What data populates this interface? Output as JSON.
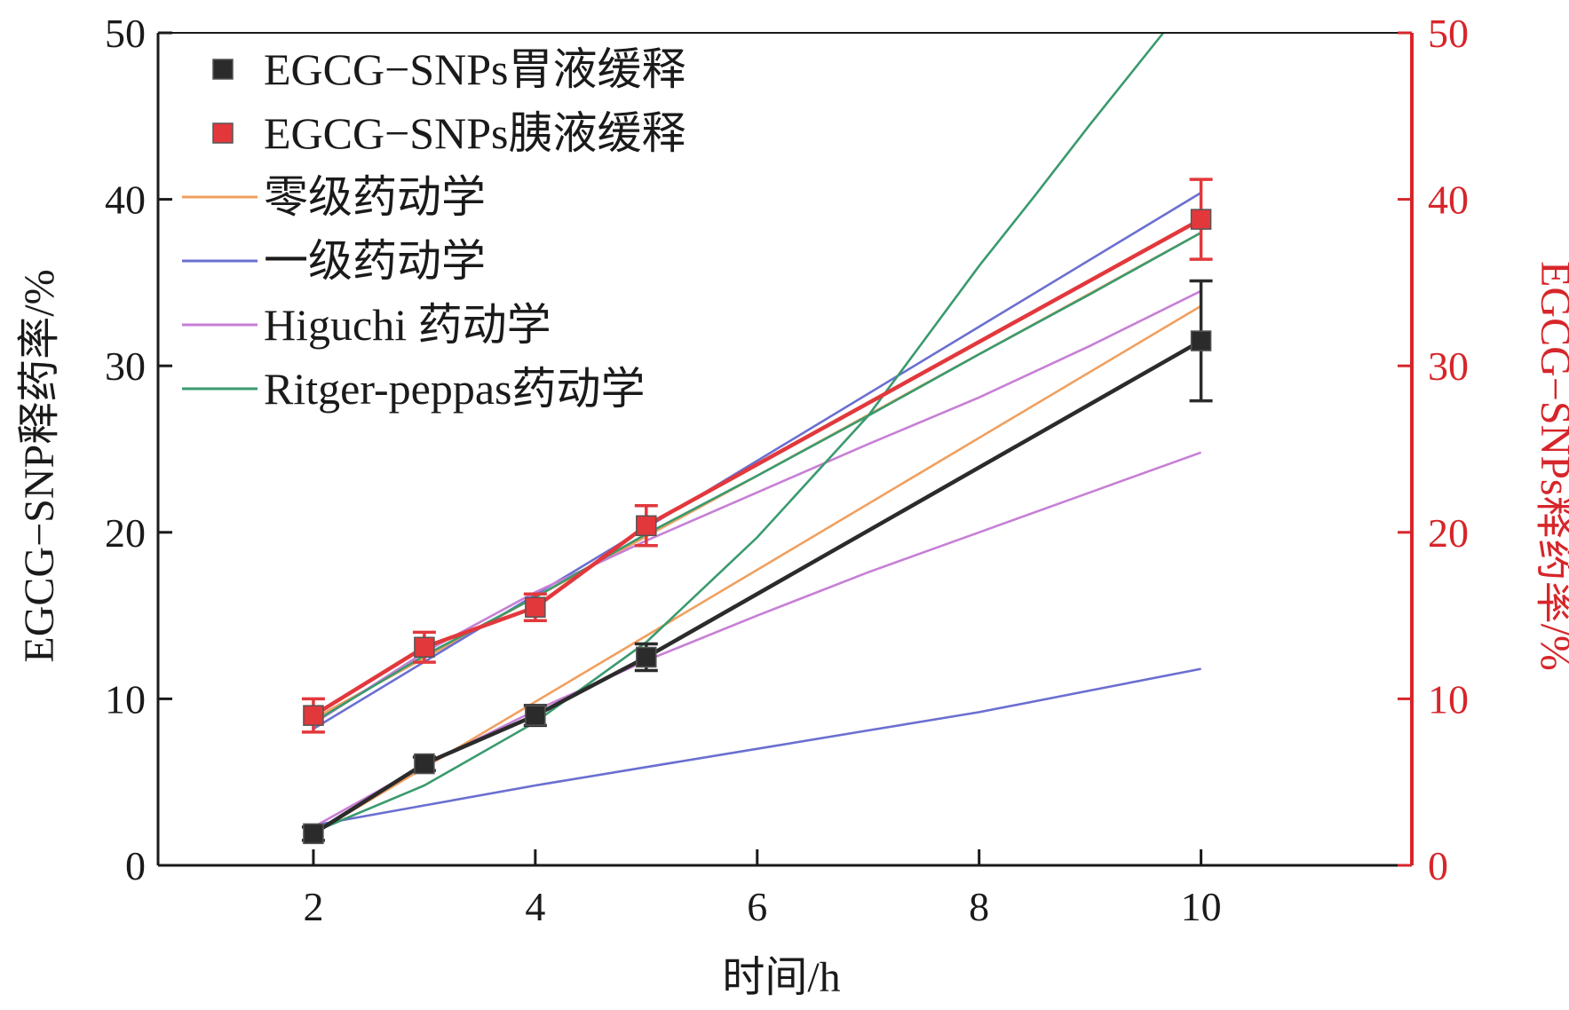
{
  "chart_data": {
    "type": "line",
    "title": "",
    "xlabel": "时间/h",
    "ylabel_left": "EGCG−SNP释药率/%",
    "ylabel_right": "EGCG−SNPs释药率/%",
    "xlim": [
      0.6,
      11.9
    ],
    "ylim": [
      0,
      50
    ],
    "ylim_right": [
      0,
      50
    ],
    "x_ticks": [
      2,
      4,
      6,
      8,
      10
    ],
    "y_ticks": [
      0,
      10,
      20,
      30,
      40,
      50
    ],
    "y_ticks_right": [
      0,
      10,
      20,
      30,
      40,
      50
    ],
    "grid": false,
    "legend_position": "top-left",
    "series": [
      {
        "name": "EGCG−SNPs胃液缓释",
        "kind": "measured",
        "color": "#2b2b2b",
        "marker": "square",
        "x": [
          2,
          3,
          4,
          5,
          10
        ],
        "values": [
          1.9,
          6.1,
          9.0,
          12.5,
          31.5
        ],
        "errors": [
          0.4,
          0.4,
          0.6,
          0.8,
          3.6
        ]
      },
      {
        "name": "EGCG−SNPs胰液缓释",
        "kind": "measured",
        "color": "#e2383c",
        "marker": "square",
        "x": [
          2,
          3,
          4,
          5,
          10
        ],
        "values": [
          9.0,
          13.1,
          15.5,
          20.4,
          38.8
        ],
        "errors": [
          1.0,
          0.9,
          0.8,
          1.2,
          2.4
        ]
      },
      {
        "name": "零级药动学",
        "kind": "fit",
        "color": "#f0a060",
        "fits": [
          {
            "x": [
              2,
              10
            ],
            "values": [
              1.9,
              33.6
            ]
          },
          {
            "x": [
              2,
              10
            ],
            "values": [
              8.8,
              38.0
            ]
          }
        ]
      },
      {
        "name": "一级药动学",
        "kind": "fit",
        "color": "#6a6fd0",
        "fits": [
          {
            "x": [
              2,
              3,
              4,
              5,
              6,
              7,
              8,
              9,
              10
            ],
            "values": [
              2.4,
              3.6,
              4.8,
              5.9,
              7.0,
              8.1,
              9.2,
              10.5,
              11.8
            ]
          },
          {
            "x": [
              2,
              10
            ],
            "values": [
              8.2,
              40.4
            ]
          }
        ]
      },
      {
        "name": "Higuchi 药动学",
        "kind": "fit",
        "color": "#c77fd6",
        "fits": [
          {
            "x": [
              2,
              3,
              4,
              5,
              6,
              7,
              8,
              9,
              10
            ],
            "values": [
              2.3,
              6.0,
              9.3,
              12.3,
              15.0,
              17.6,
              20.0,
              22.4,
              24.8
            ]
          },
          {
            "x": [
              2,
              3,
              4,
              5,
              6,
              7,
              8,
              9,
              10
            ],
            "values": [
              8.5,
              12.8,
              16.4,
              19.5,
              22.4,
              25.3,
              28.1,
              31.2,
              34.5
            ]
          }
        ]
      },
      {
        "name": "Ritger-peppas药动学",
        "kind": "fit",
        "color": "#3a9a6e",
        "fits": [
          {
            "x": [
              2,
              3,
              4,
              5,
              6,
              7,
              7.5,
              8,
              8.5,
              9,
              9.66
            ],
            "values": [
              2.0,
              4.8,
              8.6,
              13.4,
              19.7,
              27.0,
              31.5,
              36.0,
              40.2,
              44.5,
              50.0
            ]
          },
          {
            "x": [
              2,
              3,
              4,
              5,
              6,
              7,
              8,
              9,
              10
            ],
            "values": [
              8.6,
              12.6,
              16.1,
              19.9,
              23.4,
              27.0,
              30.7,
              34.3,
              38.0
            ]
          }
        ]
      }
    ]
  }
}
